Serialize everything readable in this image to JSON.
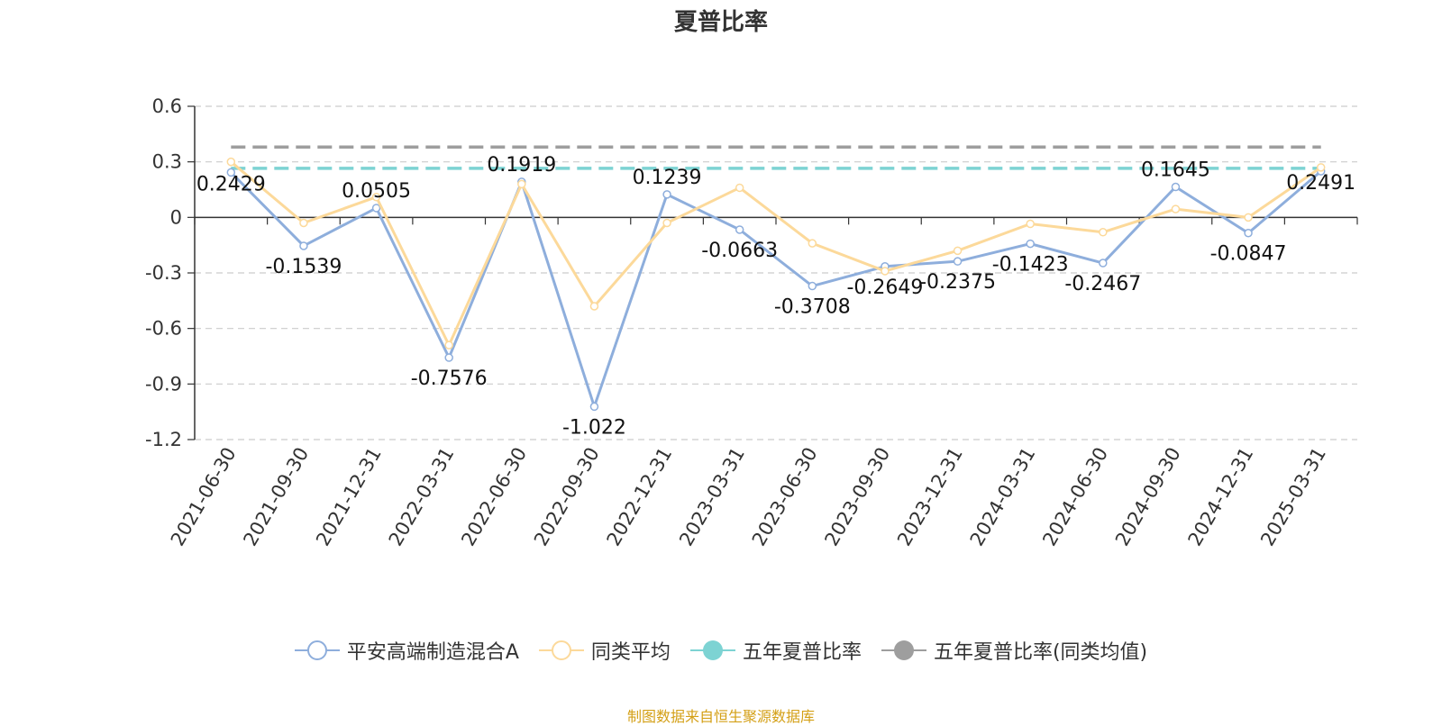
{
  "title": "夏普比率",
  "source_note": "制图数据来自恒生聚源数据库",
  "colors": {
    "fund": "#8eaedc",
    "peer": "#fcd99a",
    "five_year": "#7dd3d3",
    "five_year_peer": "#9e9e9e",
    "axis": "#333333",
    "grid": "#cccccc"
  },
  "chart_data": {
    "type": "line",
    "title": "夏普比率",
    "categories": [
      "2021-06-30",
      "2021-09-30",
      "2021-12-31",
      "2022-03-31",
      "2022-06-30",
      "2022-09-30",
      "2022-12-31",
      "2023-03-31",
      "2023-06-30",
      "2023-09-30",
      "2023-12-31",
      "2024-03-31",
      "2024-06-30",
      "2024-09-30",
      "2024-12-31",
      "2025-03-31"
    ],
    "ylim": [
      -1.2,
      0.6
    ],
    "yticks": [
      0.6,
      0.3,
      0,
      -0.3,
      -0.6,
      -0.9,
      -1.2
    ],
    "ytick_labels": [
      "0.6",
      "0.3",
      "0",
      "-0.3",
      "-0.6",
      "-0.9",
      "-1.2"
    ],
    "grid": true,
    "legend_position": "bottom",
    "series": [
      {
        "name": "平安高端制造混合A",
        "values": [
          0.2429,
          -0.1539,
          0.0505,
          -0.7576,
          0.1919,
          -1.022,
          0.1239,
          -0.0663,
          -0.3708,
          -0.2649,
          -0.2375,
          -0.1423,
          -0.2467,
          0.1645,
          -0.0847,
          0.2491
        ],
        "labels": [
          "0.2429",
          "-0.1539",
          "0.0505",
          "-0.7576",
          "0.1919",
          "-1.022",
          "0.1239",
          "-0.0663",
          "-0.3708",
          "-0.2649",
          "-0.2375",
          "-0.1423",
          "-0.2467",
          "0.1645",
          "-0.0847",
          "0.2491"
        ]
      },
      {
        "name": "同类平均",
        "values": [
          0.3,
          -0.03,
          0.11,
          -0.69,
          0.18,
          -0.48,
          -0.03,
          0.16,
          -0.14,
          -0.29,
          -0.18,
          -0.035,
          -0.08,
          0.045,
          0.0,
          0.27
        ]
      },
      {
        "name": "五年夏普比率",
        "constant": 0.265
      },
      {
        "name": "五年夏普比率(同类均值)",
        "constant": 0.38
      }
    ]
  }
}
